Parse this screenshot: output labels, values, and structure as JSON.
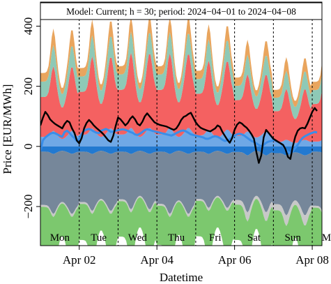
{
  "chart_data": {
    "type": "area",
    "banner": "Model: Current; h = 30; period: 2024−04−01 to 2024−04−08",
    "xlabel": "Datetime",
    "ylabel": "Price [EUR/MWh]",
    "x_range": [
      "2024-04-01T00:00",
      "2024-04-08T06:00"
    ],
    "ylim": [
      -330,
      480
    ],
    "y_ticks": [
      {
        "value": -200,
        "label": "−200"
      },
      {
        "value": 0,
        "label": "0"
      },
      {
        "value": 200,
        "label": "200"
      },
      {
        "value": 400,
        "label": "400"
      }
    ],
    "x_ticks": [
      {
        "value": "2024-04-02",
        "label": "Apr 02"
      },
      {
        "value": "2024-04-04",
        "label": "Apr 04"
      },
      {
        "value": "2024-04-06",
        "label": "Apr 06"
      },
      {
        "value": "2024-04-08",
        "label": "Apr 08"
      }
    ],
    "day_labels": [
      {
        "at": "2024-04-01T12:00",
        "label": "Mon"
      },
      {
        "at": "2024-04-02T12:00",
        "label": "Tue"
      },
      {
        "at": "2024-04-03T12:00",
        "label": "Wed"
      },
      {
        "at": "2024-04-04T12:00",
        "label": "Thu"
      },
      {
        "at": "2024-04-05T12:00",
        "label": "Fri"
      },
      {
        "at": "2024-04-06T12:00",
        "label": "Sat"
      },
      {
        "at": "2024-04-07T12:00",
        "label": "Sun"
      },
      {
        "at": "2024-04-08T12:00",
        "label": "Mon"
      }
    ],
    "day_boundaries": [
      "2024-04-01",
      "2024-04-02",
      "2024-04-03",
      "2024-04-04",
      "2024-04-05",
      "2024-04-06",
      "2024-04-07",
      "2024-04-08"
    ],
    "day_boundary_style": "dashed vertical lines",
    "stacked_positive_layers": [
      {
        "color": "#6fa8e6",
        "daily_base": [
          25,
          32,
          32,
          32,
          30,
          30,
          12,
          12
        ],
        "daily_peak": [
          52,
          60,
          62,
          62,
          56,
          50,
          22,
          28
        ]
      },
      {
        "color": "#f46161",
        "daily_base": [
          105,
          110,
          115,
          115,
          108,
          95,
          80,
          95
        ],
        "daily_peak": [
          215,
          240,
          250,
          248,
          230,
          190,
          170,
          215
        ]
      },
      {
        "color": "#8ec9b6",
        "daily_base": [
          45,
          45,
          45,
          45,
          42,
          42,
          40,
          40
        ],
        "daily_peak": [
          70,
          70,
          70,
          70,
          70,
          65,
          60,
          65
        ]
      },
      {
        "color": "#e9a55e",
        "daily_base": [
          20,
          20,
          20,
          20,
          20,
          20,
          20,
          20
        ],
        "daily_peak": [
          55,
          52,
          50,
          50,
          50,
          50,
          45,
          50
        ]
      }
    ],
    "stacked_negative_layers": [
      {
        "color": "#2279d0",
        "daily_base": [
          -15,
          -15,
          -15,
          -15,
          -15,
          -15,
          -20,
          -15
        ],
        "daily_peak": [
          -25,
          -25,
          -25,
          -25,
          -25,
          -30,
          -30,
          -25
        ]
      },
      {
        "color": "#76879a",
        "daily_base": [
          -170,
          -160,
          -150,
          -165,
          -150,
          -150,
          -160,
          -170
        ],
        "daily_peak": [
          -200,
          -190,
          -185,
          -200,
          -180,
          -190,
          -200,
          -210
        ]
      },
      {
        "color": "#c8c8c8",
        "daily_base": [
          -5,
          -5,
          -5,
          -5,
          -5,
          -10,
          -15,
          -5
        ],
        "daily_peak": [
          -10,
          -10,
          -10,
          -10,
          -10,
          -30,
          -35,
          -10
        ]
      },
      {
        "color": "#7cc86e",
        "daily_base": [
          -110,
          -100,
          -100,
          -110,
          -100,
          -100,
          -110,
          -110
        ],
        "daily_peak": [
          -190,
          -180,
          -170,
          -190,
          -170,
          -170,
          -190,
          -190
        ]
      }
    ],
    "series": [
      {
        "kind": "line",
        "color": "#000000",
        "values": [
          70,
          95,
          115,
          105,
          90,
          82,
          75,
          70,
          65,
          60,
          75,
          85,
          80,
          60,
          45,
          20,
          10,
          28,
          60,
          78,
          88,
          80,
          70,
          62,
          55,
          48,
          40,
          30,
          20,
          15,
          35,
          68,
          96,
          90,
          80,
          70,
          78,
          92,
          100,
          90,
          75,
          70,
          82,
          100,
          110,
          100,
          90,
          80,
          76,
          72,
          70,
          68,
          66,
          62,
          58,
          55,
          60,
          72,
          88,
          98,
          102,
          108,
          112,
          96,
          80,
          70,
          62,
          58,
          55,
          52,
          50,
          55,
          60,
          70,
          65,
          48,
          35,
          22,
          12,
          28,
          55,
          72,
          80,
          76,
          68,
          62,
          52,
          40,
          25,
          -20,
          -55,
          -30,
          30,
          55,
          45,
          35,
          25,
          20,
          15,
          10,
          5,
          -10,
          -35,
          -42,
          0,
          32,
          52,
          60,
          62,
          60,
          75,
          95,
          115,
          128,
          118
        ],
        "step_hours": 1.5
      },
      {
        "kind": "line",
        "color": "#3a8ee8",
        "values": [
          -15,
          20,
          30,
          36,
          42,
          45,
          44,
          40,
          35,
          32,
          48,
          52,
          45,
          35,
          28,
          18,
          25,
          42,
          52,
          56,
          58,
          55,
          50,
          46,
          44,
          52,
          55,
          58,
          54,
          48,
          50,
          52,
          54,
          56,
          57,
          55,
          52,
          48,
          45,
          40,
          38,
          42,
          48,
          54,
          57,
          55,
          52,
          50,
          48,
          46,
          44,
          42,
          40,
          38,
          36,
          40,
          44,
          48,
          52,
          53,
          50,
          45,
          40,
          38,
          36,
          34,
          32,
          30,
          26,
          25,
          28,
          32,
          34,
          32,
          28,
          22,
          18,
          20,
          24,
          30,
          36,
          40,
          42,
          40,
          36,
          30,
          24,
          18,
          15,
          10,
          5,
          0,
          5,
          12,
          16,
          18,
          20,
          18,
          14,
          10,
          0,
          -10,
          -18,
          -22,
          -15,
          -5,
          5,
          18,
          28,
          34,
          38,
          42,
          45,
          48,
          46
        ],
        "step_hours": 1.5
      }
    ]
  }
}
